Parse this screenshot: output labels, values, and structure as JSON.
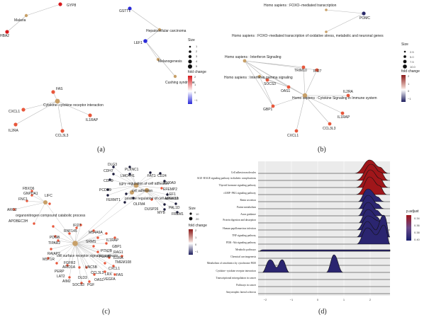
{
  "panels": {
    "a": {
      "caption": "(a)",
      "labels": {
        "gyp8": "GYP8",
        "hba2": "HBA2",
        "malaria": "Malaria",
        "gstt1": "GSTT1",
        "hepatocellular": "Hepatocellular carcinoma",
        "lef1": "LEF1",
        "melanogenesis": "Melanogenesis",
        "cushing": "Cushing syndrome",
        "fas": "FAS",
        "cxcl1": "CXCL1",
        "cytokine": "Cytokine−cytokine receptor interaction",
        "il2ra": "IL2RA",
        "il1rap": "IL1RAP",
        "ccl3l3": "CCL3L3"
      },
      "legend": {
        "size_title": "Size",
        "size_values": [
          "1",
          "2",
          "3",
          "4",
          "5"
        ],
        "fold_title": "fold change",
        "fold_ticks": [
          "2",
          "1",
          "0",
          "−1"
        ]
      }
    },
    "b": {
      "caption": "(b)",
      "labels": {
        "foxo": "Homo sapiens : FOXO−mediated transcription",
        "pomc": "POMC",
        "foxo_long": "Homo sapiens : FOXO−mediated transcription of oxidative stress, metabolic and neuronal genes",
        "ifn": "Homo sapiens : Interferon Signaling",
        "trim10": "TRIM10",
        "ifi27": "IFI27",
        "ifng": "Homo sapiens : Interferon gamma signaling",
        "socs3": "SOCS3",
        "gbp1": "GBP1",
        "oas1": "OAS1",
        "cytosig": "Homo sapiens : Cytokine Signaling in Immune system",
        "il2ra": "IL2RA",
        "il1rap": "IL1RAP",
        "ccl3l3": "CCL3L3",
        "cxcl1": "CXCL1"
      },
      "legend": {
        "size_title": "Size",
        "size_values": [
          "2.5",
          "5.0",
          "7.5",
          "10.0"
        ],
        "fold_title": "fold change",
        "fold_ticks": [
          "2",
          "1",
          "0",
          "−1"
        ]
      }
    },
    "c": {
      "caption": "(c)",
      "labels": {
        "dlg3": "DLG3",
        "plxnc1": "PLXNC1",
        "cdh7": "CDH7",
        "lmo4h1": "LMO4H1",
        "fat1": "FAT1",
        "cd24": "CD24",
        "cdh9": "CDH9",
        "s100a9": "S100A9",
        "npy": "NPY",
        "efemp2": "EFEMP2",
        "pcdh9": "PCDH9",
        "reg_cell_adh": "regulation of cell adhesion",
        "lef1": "LEF1",
        "cell_adh": "cell adhesion",
        "fermt1": "FERMT1",
        "arhgef12": "AEGK12",
        "pos_reg_cell_adh": "positive regulation of cell adhesion",
        "olfm4": "OLFM4",
        "pal1d": "PAL1D",
        "dusp26": "DUSP26",
        "myb": "MYB",
        "frem1": "FREM1",
        "size_title": "Size",
        "size_10": "10",
        "size_20": "20",
        "fbxo6": "FBXO6",
        "gnpda1": "GNPDA1",
        "lifc": "LIFC",
        "fnc1": "FNC1",
        "arg2": "ARG2",
        "org_catabolic": "organonitrogen compound catabolic process",
        "apobec3h": "APOBEC3H",
        "ifi27": "IFI27",
        "rnf145": "RNF145",
        "pdgb": "PDGB",
        "tipar2": "TIPAR2",
        "ms4a6a": "MS4A6A",
        "il1rap": "IL1RAP",
        "srms": "SRMS",
        "gbp1": "GBP1",
        "ptn2b": "PTN2B",
        "rag1": "RAG1",
        "raiap2": "RAIAP2",
        "cell_surface": "cell surface receptor signaling pathway",
        "il2ra": "IL2RA",
        "mst1r": "MST1R",
        "fgf2b": "FGF2B",
        "fgfr2": "FGFR2",
        "tmem108": "TMEM108",
        "arid1a": "ARID1A",
        "unc5b": "UNC5B",
        "cxcl1": "CXCL1",
        "perp": "PERP",
        "lrx": "LRX",
        "fas": "FAS",
        "lat2": "LAT2",
        "ccl3l3": "CCL3L3",
        "vegfa": "VEGFA",
        "aim2": "AIM2",
        "dld3": "DLD3",
        "oas1": "OAS1",
        "socs3": "SOCS3",
        "pgf": "PGF"
      },
      "legend": {
        "fold_title": "fold change",
        "fold_ticks": [
          "2",
          "1",
          "0",
          "−1"
        ]
      }
    },
    "d": {
      "caption": "(d)",
      "legend_title": "p.adjust",
      "legend_ticks": [
        "0.34",
        "0.36",
        "0.38",
        "0.40"
      ],
      "x_ticks": [
        "−2",
        "−1",
        "0",
        "1",
        "2"
      ],
      "rows": [
        "Cell adhesion molecules",
        "AGE−RAGE signaling pathway in diabetic complications",
        "Thyroid hormone signaling pathway",
        "cGMP−PKG signaling pathway",
        "Renin secretion",
        "Purine metabolism",
        "Axon guidance",
        "Protein digestion and absorption",
        "Human papillomavirus infection",
        "TNF signaling pathway",
        "PI3K−Akt signaling pathway",
        "Metabolic pathways",
        "Chemical carcinogenesis",
        "Metabolism of xenobiotics by cytochrome P450",
        "Cytokine−cytokine receptor interaction",
        "Transcriptional misregulation in cancer",
        "Pathways in cancer",
        "Amyotrophic lateral sclerosis"
      ]
    }
  }
}
